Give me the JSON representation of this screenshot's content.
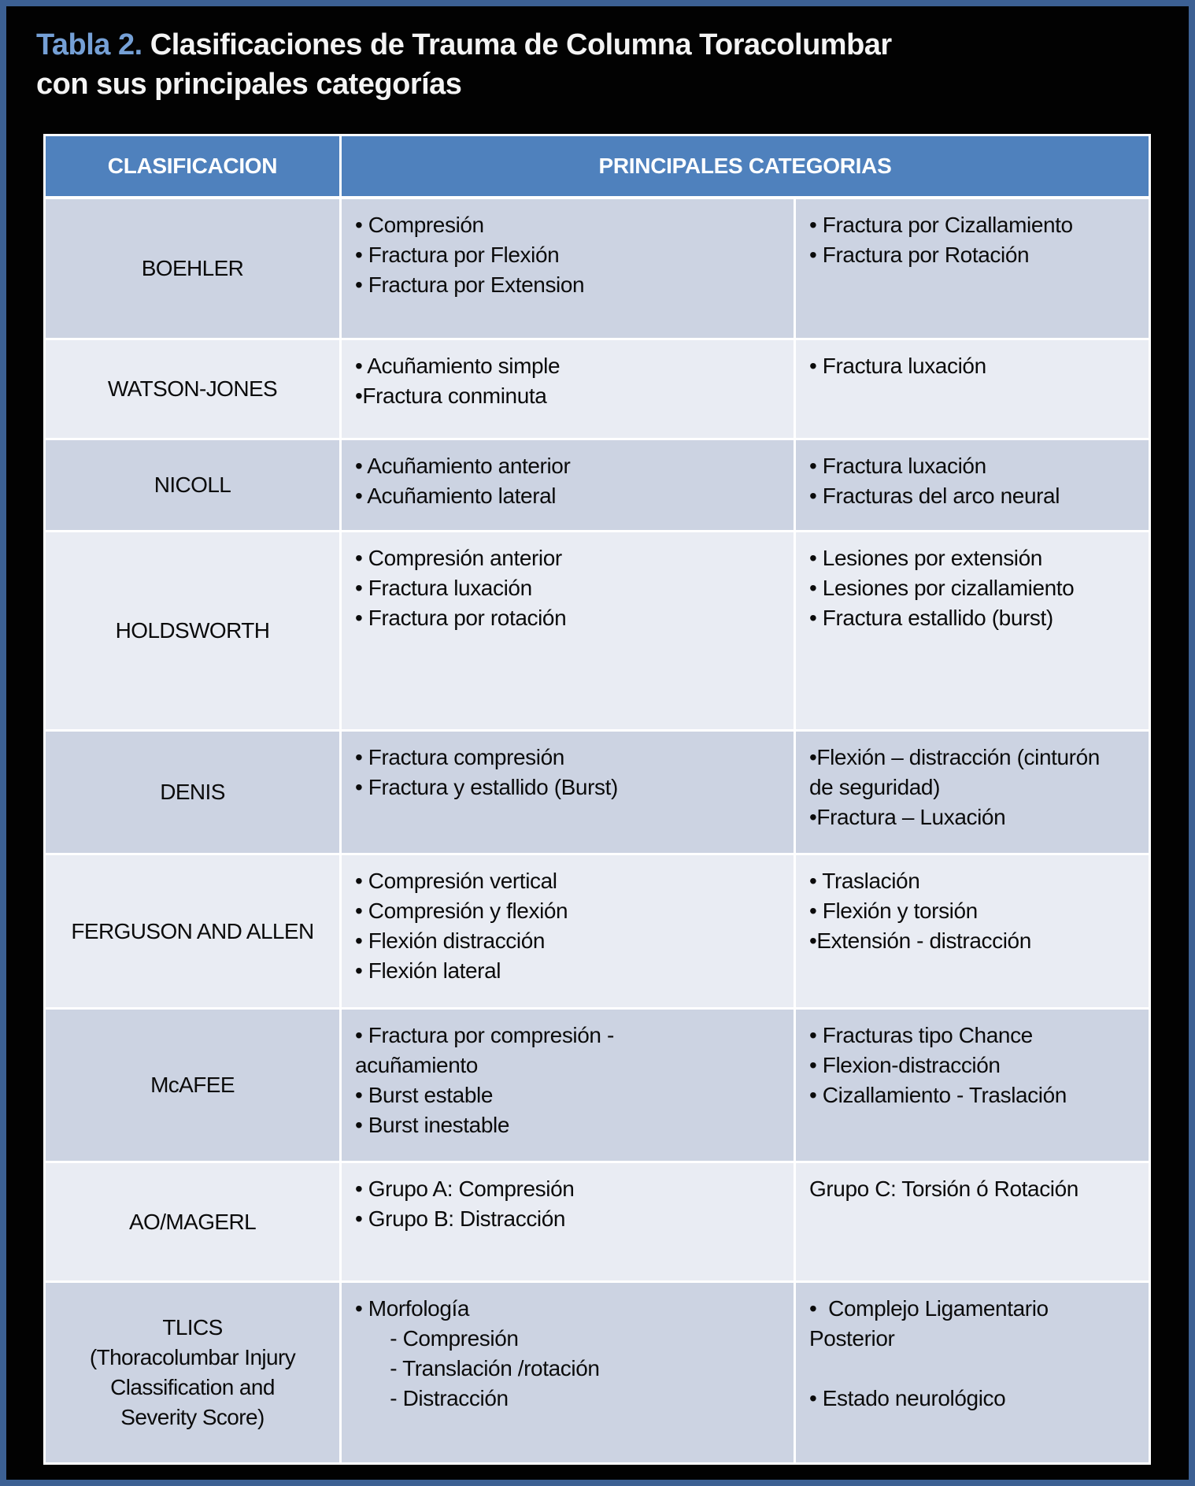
{
  "title": {
    "tag": "Tabla 2.",
    "rest": "Clasificaciones de Trauma de Columna Toracolumbar\ncon sus principales categorías"
  },
  "table": {
    "header": {
      "classification": "CLASIFICACION",
      "categories": "PRINCIPALES CATEGORIAS"
    },
    "rows": [
      {
        "name": "BOEHLER",
        "categories_a": [
          "• Compresión",
          "• Fractura por Flexión",
          "• Fractura por Extension"
        ],
        "categories_b": [
          "• Fractura por Cizallamiento",
          "• Fractura por Rotación"
        ]
      },
      {
        "name": "WATSON-JONES",
        "categories_a": [
          "• Acuñamiento simple",
          "•Fractura conminuta"
        ],
        "categories_b": [
          "• Fractura luxación"
        ]
      },
      {
        "name": "NICOLL",
        "categories_a": [
          "• Acuñamiento anterior",
          "• Acuñamiento lateral"
        ],
        "categories_b": [
          "• Fractura luxación",
          "• Fracturas del arco neural"
        ]
      },
      {
        "name": "HOLDSWORTH",
        "categories_a": [
          "• Compresión anterior",
          "• Fractura luxación",
          "• Fractura por rotación"
        ],
        "categories_b": [
          "• Lesiones por extensión",
          "• Lesiones por cizallamiento",
          "• Fractura estallido (burst)"
        ]
      },
      {
        "name": "DENIS",
        "categories_a": [
          "• Fractura compresión",
          "• Fractura y estallido (Burst)"
        ],
        "categories_b": [
          "•Flexión – distracción (cinturón\nde seguridad)",
          "•Fractura – Luxación"
        ]
      },
      {
        "name": "FERGUSON AND ALLEN",
        "categories_a": [
          "• Compresión vertical",
          "• Compresión y flexión",
          "• Flexión distracción",
          "• Flexión lateral"
        ],
        "categories_b": [
          "• Traslación",
          "• Flexión y torsión",
          "•Extensión - distracción"
        ]
      },
      {
        "name": "McAFEE",
        "categories_a": [
          "• Fractura por compresión -\nacuñamiento",
          "• Burst estable",
          "• Burst inestable"
        ],
        "categories_b": [
          "• Fracturas tipo Chance",
          "• Flexion-distracción",
          "• Cizallamiento - Traslación"
        ]
      },
      {
        "name": "AO/MAGERL",
        "categories_a": [
          "• Grupo A: Compresión",
          "• Grupo B: Distracción"
        ],
        "categories_b": [
          "Grupo C: Torsión ó Rotación"
        ]
      },
      {
        "name": "TLICS\n(Thoracolumbar Injury\nClassification and\nSeverity Score)",
        "categories_a": [
          "• Morfología",
          "      - Compresión",
          "      - Translación /rotación",
          "      - Distracción"
        ],
        "categories_b": [
          "•  Complejo Ligamentario\nPosterior",
          "",
          "• Estado neurológico"
        ]
      }
    ]
  },
  "colors": {
    "background": "#020202",
    "frame": "#3c6093",
    "header_bg": "#4f81bd",
    "header_text": "#ffffff",
    "row_dark": "#ccd3e2",
    "row_light": "#e9ecf3",
    "grid_line": "#ffffff",
    "body_text": "#0b0b0b",
    "title_accent": "#75a0d6",
    "title_text": "#f4f4f4"
  }
}
